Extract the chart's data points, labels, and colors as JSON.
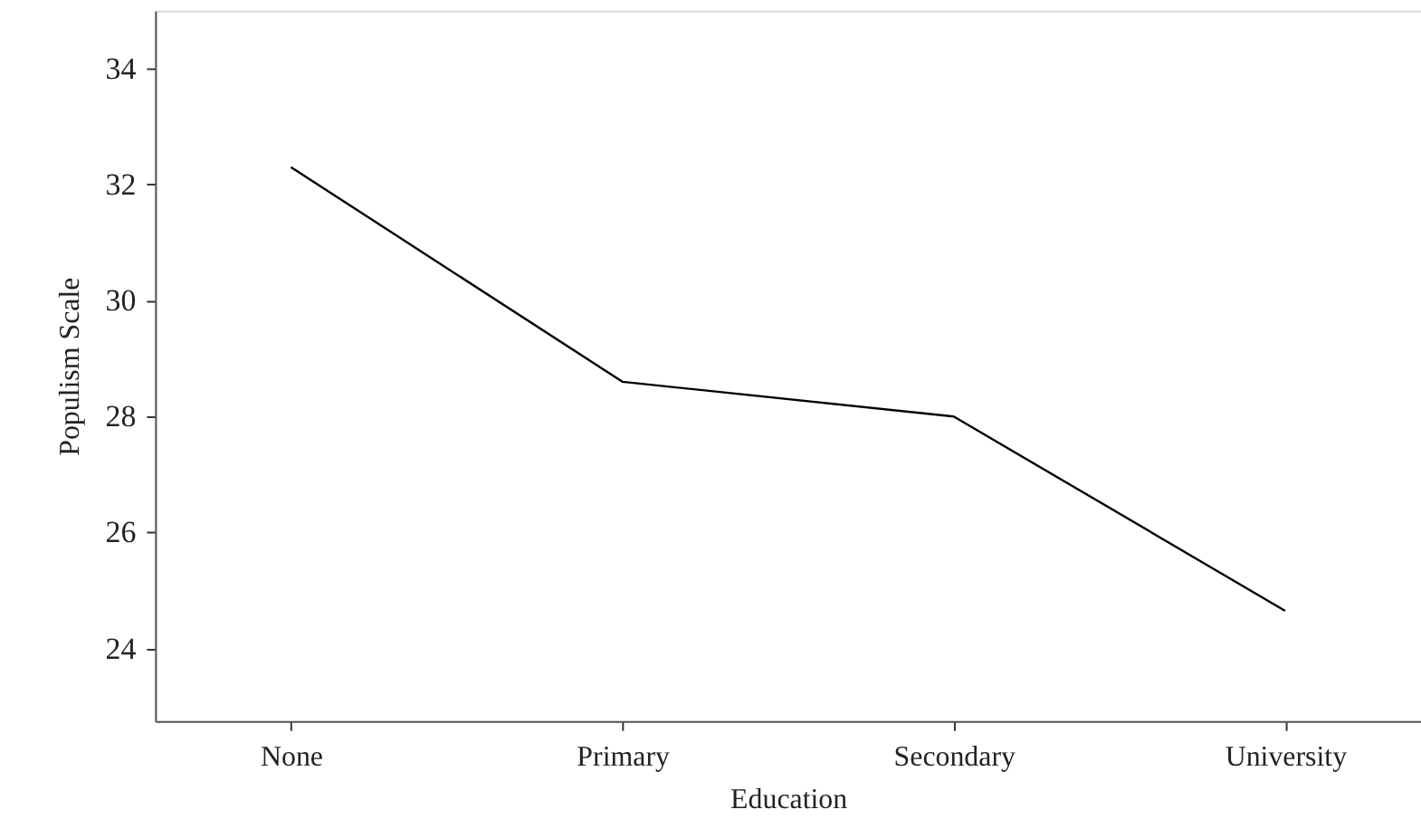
{
  "chart_data": {
    "type": "line",
    "xlabel": "Education",
    "ylabel": "Populism Scale",
    "categories": [
      "None",
      "Primary",
      "Secondary",
      "University"
    ],
    "series": [
      {
        "color": "#000000",
        "values": [
          32.3,
          28.6,
          28.0,
          24.65
        ]
      }
    ],
    "ylim": [
      22.75,
      35
    ],
    "yticks": [
      24,
      26,
      28,
      30,
      32,
      34
    ],
    "grid": false,
    "marker": "none",
    "line_style": "solid"
  }
}
